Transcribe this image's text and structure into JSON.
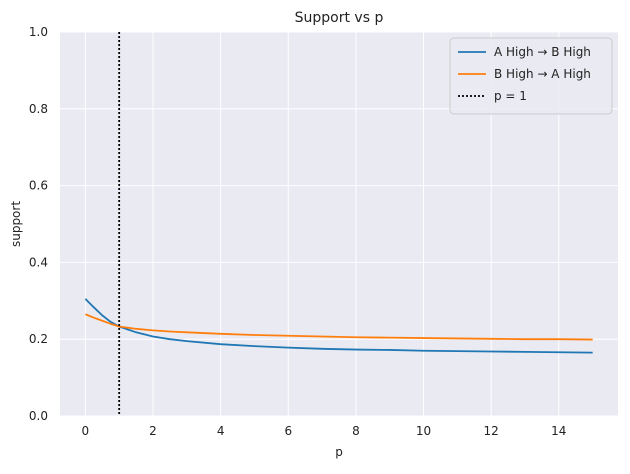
{
  "chart_data": {
    "type": "line",
    "title": "Support vs p",
    "xlabel": "p",
    "ylabel": "support",
    "xlim": [
      -0.75,
      15.75
    ],
    "ylim": [
      0.0,
      1.0
    ],
    "xticks": [
      0,
      2,
      4,
      6,
      8,
      10,
      12,
      14
    ],
    "yticks": [
      0.0,
      0.2,
      0.4,
      0.6,
      0.8,
      1.0
    ],
    "xtick_labels": [
      "0",
      "2",
      "4",
      "6",
      "8",
      "10",
      "12",
      "14"
    ],
    "ytick_labels": [
      "0.0",
      "0.2",
      "0.4",
      "0.6",
      "0.8",
      "1.0"
    ],
    "grid": true,
    "legend_position": "top-right",
    "x": [
      0,
      0.25,
      0.5,
      0.75,
      1,
      1.5,
      2,
      2.5,
      3,
      4,
      5,
      6,
      7,
      8,
      9,
      10,
      11,
      12,
      13,
      14,
      15
    ],
    "series": [
      {
        "name": "A High → B High",
        "color": "#1f77b4",
        "style": "solid",
        "values": [
          0.305,
          0.283,
          0.262,
          0.245,
          0.233,
          0.218,
          0.207,
          0.2,
          0.195,
          0.187,
          0.182,
          0.178,
          0.175,
          0.173,
          0.172,
          0.17,
          0.169,
          0.168,
          0.167,
          0.166,
          0.165
        ]
      },
      {
        "name": "B High → A High",
        "color": "#ff7f0e",
        "style": "solid",
        "values": [
          0.265,
          0.256,
          0.248,
          0.24,
          0.233,
          0.227,
          0.223,
          0.22,
          0.218,
          0.214,
          0.211,
          0.209,
          0.207,
          0.205,
          0.204,
          0.203,
          0.202,
          0.201,
          0.2,
          0.2,
          0.199
        ]
      }
    ],
    "vlines": [
      {
        "name": "p = 1",
        "x": 1,
        "color": "#000000",
        "style": "dotted"
      }
    ],
    "background_color": "#eaeaf2",
    "grid_color": "#ffffff"
  }
}
